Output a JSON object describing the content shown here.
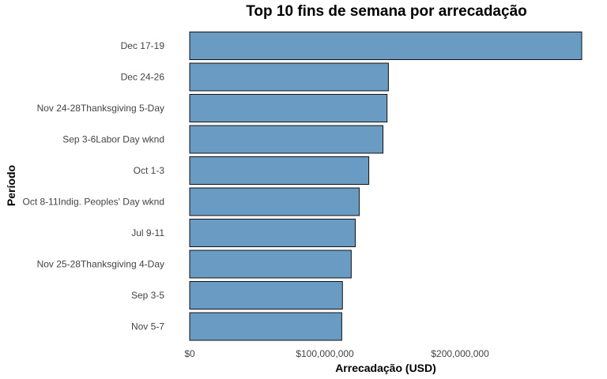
{
  "chart_data": {
    "type": "bar",
    "orientation": "horizontal",
    "title": "Top 10 fins de semana por arrecadação",
    "xlabel": "Arrecadação (USD)",
    "ylabel": "Período",
    "categories": [
      "Dec 17-19",
      "Dec 24-26",
      "Nov 24-28Thanksgiving 5-Day",
      "Sep 3-6Labor Day wknd",
      "Oct 1-3",
      "Oct 8-11Indig. Peoples' Day wknd",
      "Jul 9-11",
      "Nov 25-28Thanksgiving 4-Day",
      "Sep 3-5",
      "Nov 5-7"
    ],
    "values": [
      290000000,
      147000000,
      146000000,
      143000000,
      132500000,
      125500000,
      122500000,
      119500000,
      113000000,
      112500000
    ],
    "xlim": [
      0,
      290000000
    ],
    "xticks": [
      0,
      100000000,
      200000000
    ],
    "xtick_labels": [
      "$0",
      "$100,000,000",
      "$200,000,000"
    ],
    "grid": false,
    "legend": "none",
    "bar_color": "#6a9bc3",
    "bar_edge_color": "#111111"
  }
}
